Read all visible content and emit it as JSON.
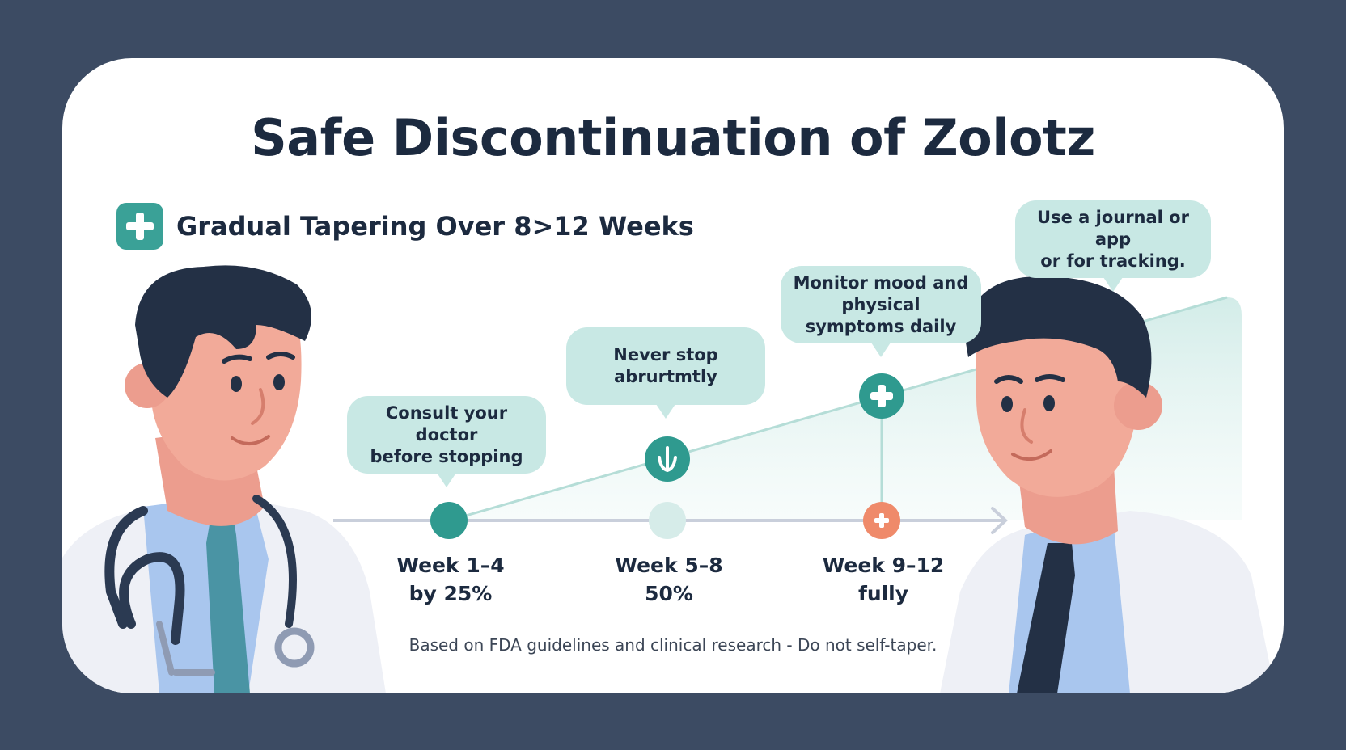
{
  "title": "Safe Discontinuation of Zolotz",
  "subtitle": "Gradual Tapering Over 8>12 Weeks",
  "bubbles": [
    {
      "line1": "Consult your doctor",
      "line2": "before stopping"
    },
    {
      "line1": "Never stop",
      "line2": "abrurtmtly"
    },
    {
      "line1": "Monitor mood and",
      "line2": "physical symptoms daily"
    },
    {
      "line1": "Use a journal or app",
      "line2": "or for tracking."
    }
  ],
  "weeks": [
    {
      "range": "Week 1–4",
      "amount": "by 25%"
    },
    {
      "range": "Week 5–8",
      "amount": "50%"
    },
    {
      "range": "Week 9–12",
      "amount": "fully"
    }
  ],
  "footnote": "Based on FDA guidelines and clinical research - Do not self-taper.",
  "colors": {
    "background": "#3c4b63",
    "card": "#ffffff",
    "teal": "#3aa197",
    "bubble": "#c8e8e4",
    "coral": "#ef8a6a",
    "text": "#1c2a3f"
  },
  "icons": [
    "plus-icon",
    "down-arrow-icon",
    "stethoscope-icon"
  ]
}
